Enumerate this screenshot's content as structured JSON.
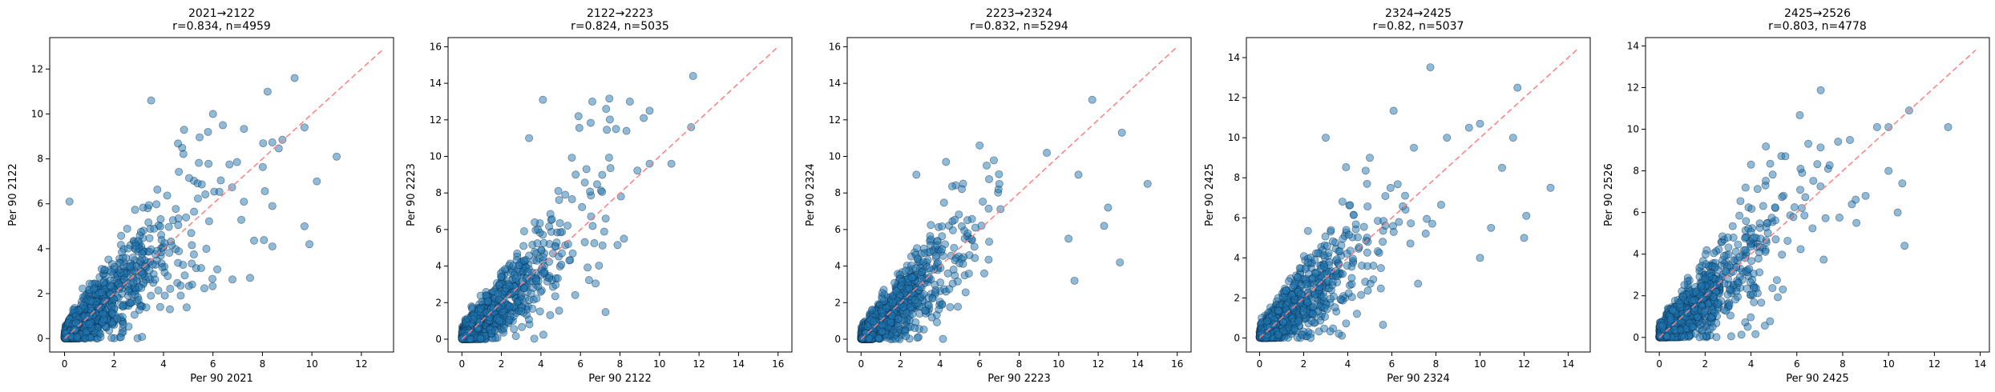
{
  "chart_data": [
    {
      "type": "scatter",
      "title_line1": "2021→2122",
      "title_line2": "r=0.834, n=4959",
      "xlabel": "Per 90 2021",
      "ylabel": "Per 90 2122",
      "xlim": [
        -0.6,
        13.3
      ],
      "ylim": [
        -0.6,
        13.4
      ],
      "xticks": [
        0,
        2,
        4,
        6,
        8,
        10,
        12
      ],
      "yticks": [
        0,
        2,
        4,
        6,
        8,
        10,
        12
      ],
      "diagonal": [
        0,
        12.9
      ],
      "n": 4959,
      "r": 0.834,
      "outliers": [
        [
          0.2,
          6.1
        ],
        [
          3.5,
          10.6
        ],
        [
          9.3,
          11.6
        ],
        [
          9.7,
          9.4
        ],
        [
          11.0,
          8.1
        ],
        [
          9.9,
          4.2
        ],
        [
          8.4,
          5.9
        ],
        [
          6.4,
          9.5
        ],
        [
          5.8,
          9.2
        ],
        [
          8.4,
          4.1
        ],
        [
          6.0,
          10.0
        ],
        [
          7.5,
          2.7
        ],
        [
          9.7,
          5.0
        ],
        [
          10.2,
          7.0
        ]
      ]
    },
    {
      "type": "scatter",
      "title_line1": "2122→2223",
      "title_line2": "r=0.824, n=5035",
      "xlabel": "Per 90 2122",
      "ylabel": "Per 90 2223",
      "xlim": [
        -0.7,
        16.7
      ],
      "ylim": [
        -0.7,
        16.5
      ],
      "xticks": [
        0,
        2,
        4,
        6,
        8,
        10,
        12,
        14,
        16
      ],
      "yticks": [
        0,
        2,
        4,
        6,
        8,
        10,
        12,
        14,
        16
      ],
      "diagonal": [
        0,
        16.0
      ],
      "n": 5035,
      "r": 0.824,
      "outliers": [
        [
          11.7,
          14.4
        ],
        [
          11.6,
          11.6
        ],
        [
          4.1,
          13.1
        ],
        [
          6.6,
          13.0
        ],
        [
          7.3,
          12.6
        ],
        [
          8.5,
          13.0
        ],
        [
          9.5,
          12.5
        ],
        [
          9.5,
          9.6
        ],
        [
          10.6,
          9.6
        ],
        [
          7.8,
          11.5
        ],
        [
          5.9,
          12.2
        ],
        [
          3.4,
          11.0
        ],
        [
          9.2,
          12.1
        ],
        [
          8.2,
          5.5
        ]
      ]
    },
    {
      "type": "scatter",
      "title_line1": "2223→2324",
      "title_line2": "r=0.832, n=5294",
      "xlabel": "Per 90 2223",
      "ylabel": "Per 90 2324",
      "xlim": [
        -0.7,
        16.7
      ],
      "ylim": [
        -0.7,
        16.5
      ],
      "xticks": [
        0,
        2,
        4,
        6,
        8,
        10,
        12,
        14,
        16
      ],
      "yticks": [
        0,
        2,
        4,
        6,
        8,
        10,
        12,
        14,
        16
      ],
      "diagonal": [
        0,
        16.0
      ],
      "n": 5294,
      "r": 0.832,
      "outliers": [
        [
          14.5,
          8.5
        ],
        [
          13.2,
          11.3
        ],
        [
          11.7,
          13.1
        ],
        [
          13.1,
          4.2
        ],
        [
          10.8,
          3.2
        ],
        [
          12.5,
          7.2
        ],
        [
          11.0,
          9.0
        ],
        [
          6.0,
          10.6
        ],
        [
          4.3,
          9.7
        ],
        [
          10.5,
          5.5
        ],
        [
          12.3,
          6.2
        ],
        [
          9.4,
          10.2
        ],
        [
          7.0,
          8.5
        ],
        [
          2.8,
          9.0
        ]
      ]
    },
    {
      "type": "scatter",
      "title_line1": "2324→2425",
      "title_line2": "r=0.82, n=5037",
      "xlabel": "Per 90 2324",
      "ylabel": "Per 90 2425",
      "xlim": [
        -0.6,
        15.0
      ],
      "ylim": [
        -0.7,
        15.0
      ],
      "xticks": [
        0,
        2,
        4,
        6,
        8,
        10,
        12,
        14
      ],
      "yticks": [
        0,
        2,
        4,
        6,
        8,
        10,
        12,
        14
      ],
      "diagonal": [
        0,
        14.4
      ],
      "n": 5037,
      "r": 0.82,
      "outliers": [
        [
          11.7,
          12.5
        ],
        [
          13.2,
          7.5
        ],
        [
          10.0,
          10.7
        ],
        [
          9.5,
          10.5
        ],
        [
          3.0,
          10.0
        ],
        [
          11.0,
          8.5
        ],
        [
          12.1,
          6.1
        ],
        [
          10.0,
          4.0
        ],
        [
          8.5,
          10.0
        ],
        [
          7.0,
          9.5
        ],
        [
          10.5,
          5.5
        ],
        [
          11.5,
          10.0
        ],
        [
          5.0,
          9.0
        ],
        [
          12.0,
          5.0
        ]
      ]
    },
    {
      "type": "scatter",
      "title_line1": "2425→2526",
      "title_line2": "r=0.803, n=4778",
      "xlabel": "Per 90 2425",
      "ylabel": "Per 90 2526",
      "xlim": [
        -0.6,
        14.4
      ],
      "ylim": [
        -0.7,
        14.4
      ],
      "xticks": [
        0,
        2,
        4,
        6,
        8,
        10,
        12,
        14
      ],
      "yticks": [
        0,
        2,
        4,
        6,
        8,
        10,
        12,
        14
      ],
      "diagonal": [
        0,
        13.8
      ],
      "n": 4778,
      "r": 0.803,
      "outliers": [
        [
          12.6,
          10.1
        ],
        [
          10.9,
          10.9
        ],
        [
          9.5,
          10.1
        ],
        [
          10.0,
          10.1
        ],
        [
          10.7,
          4.4
        ],
        [
          10.0,
          8.0
        ],
        [
          10.6,
          7.4
        ],
        [
          7.8,
          9.4
        ],
        [
          6.5,
          9.3
        ],
        [
          8.6,
          5.5
        ],
        [
          9.0,
          6.8
        ],
        [
          4.0,
          8.3
        ],
        [
          10.4,
          6.0
        ],
        [
          5.5,
          8.7
        ]
      ]
    }
  ],
  "colors": {
    "point_fill": "#1f77b4",
    "point_edge": "#0b2a45",
    "diagonal": "#ff7f7f",
    "axis": "#000000"
  }
}
